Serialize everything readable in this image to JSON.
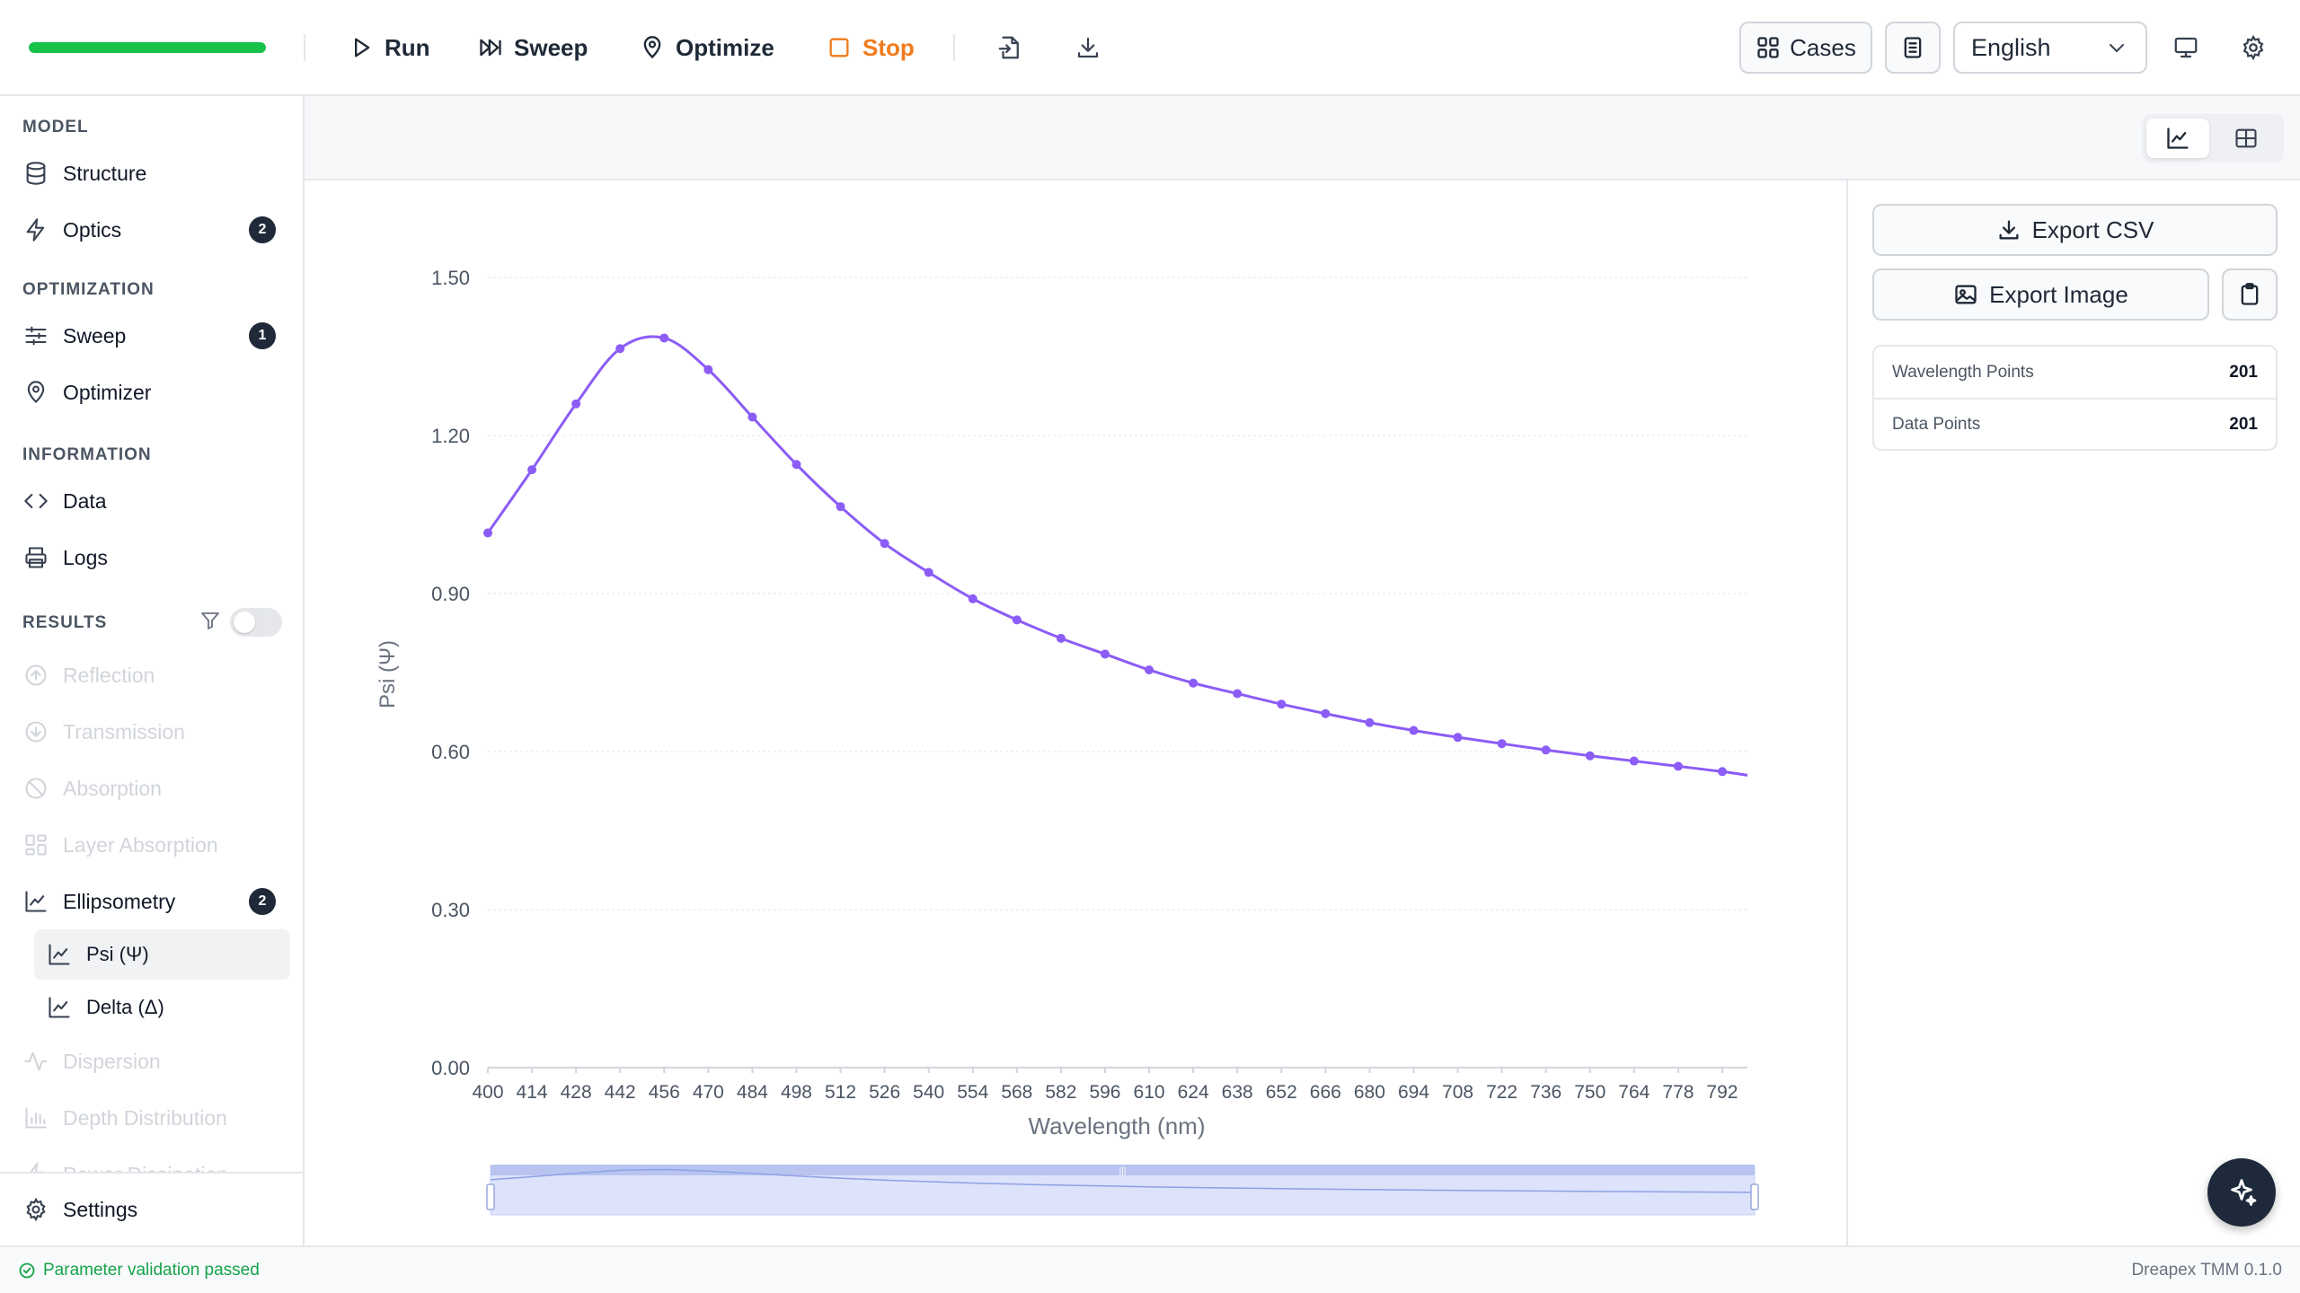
{
  "toolbar": {
    "progress": 1.0,
    "run_label": "Run",
    "sweep_label": "Sweep",
    "optimize_label": "Optimize",
    "stop_label": "Stop",
    "cases_label": "Cases",
    "language": "English"
  },
  "sidebar": {
    "sections": {
      "model": "MODEL",
      "optimization": "OPTIMIZATION",
      "information": "INFORMATION",
      "results": "RESULTS"
    },
    "items": {
      "structure": "Structure",
      "optics": "Optics",
      "optics_badge": "2",
      "sweep": "Sweep",
      "sweep_badge": "1",
      "optimizer": "Optimizer",
      "data": "Data",
      "logs": "Logs",
      "reflection": "Reflection",
      "transmission": "Transmission",
      "absorption": "Absorption",
      "layer_absorption": "Layer Absorption",
      "ellipsometry": "Ellipsometry",
      "ellipsometry_badge": "2",
      "psi": "Psi (Ψ)",
      "delta": "Delta (Δ)",
      "dispersion": "Dispersion",
      "depth_distribution": "Depth Distribution",
      "power_dissipation": "Power Dissipation",
      "settings": "Settings"
    },
    "results_filter_on": false
  },
  "right_panel": {
    "export_csv": "Export CSV",
    "export_image": "Export Image",
    "stats": [
      {
        "label": "Wavelength Points",
        "value": "201"
      },
      {
        "label": "Data Points",
        "value": "201"
      }
    ]
  },
  "status": {
    "message": "Parameter validation passed",
    "version": "Dreapex TMM 0.1.0"
  },
  "colors": {
    "series": "#8b5cf6",
    "progress": "#16c24a",
    "stop": "#f07b1c",
    "status_ok": "#16a34a"
  },
  "chart_data": {
    "type": "line",
    "title": "",
    "xlabel": "Wavelength (nm)",
    "ylabel": "Psi (Ψ)",
    "xlim": [
      400,
      800
    ],
    "ylim": [
      0,
      1.5
    ],
    "yticks": [
      "0.00",
      "0.30",
      "0.60",
      "0.90",
      "1.20",
      "1.50"
    ],
    "xticks": [
      "400",
      "414",
      "428",
      "442",
      "456",
      "470",
      "484",
      "498",
      "512",
      "526",
      "540",
      "554",
      "568",
      "582",
      "596",
      "610",
      "624",
      "638",
      "652",
      "666",
      "680",
      "694",
      "708",
      "722",
      "736",
      "750",
      "764",
      "778",
      "792"
    ],
    "grid": true,
    "legend": "none",
    "x": [
      400,
      414,
      428,
      442,
      456,
      470,
      484,
      498,
      512,
      526,
      540,
      554,
      568,
      582,
      596,
      610,
      624,
      638,
      652,
      666,
      680,
      694,
      708,
      722,
      736,
      750,
      764,
      778,
      792,
      800
    ],
    "y": [
      1.015,
      1.135,
      1.26,
      1.365,
      1.385,
      1.325,
      1.235,
      1.145,
      1.065,
      0.995,
      0.94,
      0.89,
      0.85,
      0.815,
      0.785,
      0.755,
      0.73,
      0.71,
      0.69,
      0.672,
      0.655,
      0.64,
      0.627,
      0.615,
      0.603,
      0.592,
      0.582,
      0.572,
      0.562,
      0.555
    ],
    "markers": true
  }
}
